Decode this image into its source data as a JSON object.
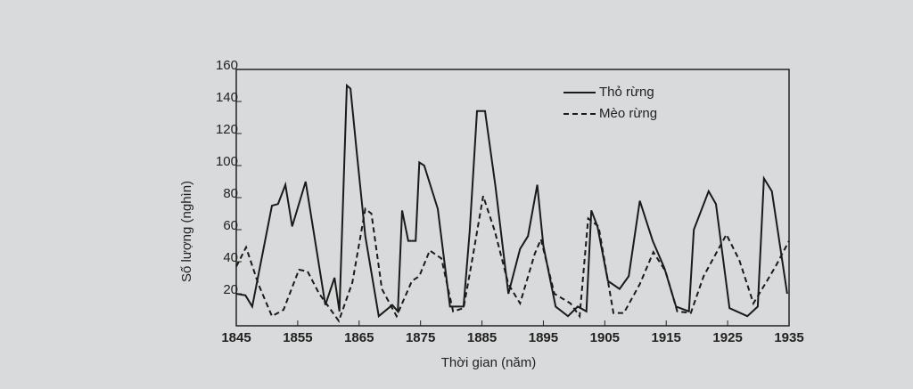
{
  "chart_data": {
    "type": "line",
    "xlabel": "Thời gian (năm)",
    "ylabel": "Số lượng (nghìn)",
    "xlim": [
      1845,
      1935
    ],
    "xticks": [
      1845,
      1855,
      1865,
      1875,
      1885,
      1895,
      1905,
      1915,
      1925,
      1935
    ],
    "ylim": [
      0,
      160
    ],
    "yticks": [
      20,
      40,
      60,
      80,
      100,
      120,
      140,
      160
    ],
    "legend": "upper right",
    "series": [
      {
        "name": "Thỏ rừng",
        "color": "#1a1a1a",
        "dashed": false,
        "x": [
          1845,
          1846.5,
          1847.6,
          1850.8,
          1851.8,
          1853,
          1854.1,
          1856.3,
          1859.5,
          1861,
          1861.8,
          1863,
          1863.6,
          1864.6,
          1866,
          1868.2,
          1870.4,
          1871.3,
          1872,
          1873,
          1874.2,
          1874.8,
          1875.6,
          1877.8,
          1879.8,
          1882,
          1883,
          1884.2,
          1885.5,
          1887.2,
          1889.3,
          1891.2,
          1892.5,
          1894,
          1895,
          1897,
          1899,
          1900.6,
          1902,
          1902.8,
          1903.8,
          1905.5,
          1907.4,
          1908.9,
          1910.7,
          1912.8,
          1914.7,
          1916.6,
          1918.7,
          1919.5,
          1921.9,
          1923.1,
          1925.3,
          1928.2,
          1929.9,
          1930.9,
          1932.2,
          1934.7
        ],
        "values": [
          20,
          19,
          12,
          75,
          76,
          88,
          62,
          90,
          13,
          30,
          9,
          150,
          148,
          109,
          56,
          6,
          13,
          9,
          72,
          53,
          53,
          102,
          100,
          73,
          12,
          12,
          59,
          134,
          134,
          87,
          20,
          48,
          56,
          88,
          50,
          12,
          6,
          12,
          9,
          72,
          62,
          28,
          23,
          31,
          78,
          53,
          36,
          12,
          9,
          60,
          84,
          76,
          11,
          6,
          12,
          92,
          84,
          20
        ]
      },
      {
        "name": "Mèo rừng",
        "color": "#1a1a1a",
        "dashed": true,
        "x": [
          1845,
          1846.6,
          1848.6,
          1850.8,
          1852.7,
          1855.2,
          1856.6,
          1858.5,
          1861.7,
          1863.9,
          1866,
          1867,
          1868.7,
          1871.1,
          1873.6,
          1874.8,
          1876.5,
          1878.4,
          1880.3,
          1882,
          1883.5,
          1885.2,
          1887.1,
          1889.3,
          1891.2,
          1893.6,
          1894.6,
          1896.8,
          1899.4,
          1900.9,
          1902.3,
          1904,
          1906.4,
          1908.1,
          1910.7,
          1912.9,
          1914.9,
          1916.8,
          1919,
          1921.1,
          1924.8,
          1926.9,
          1929.2,
          1931.4,
          1932.8,
          1935
        ],
        "values": [
          37,
          49,
          26,
          6,
          10,
          35,
          34,
          20,
          3,
          27,
          73,
          70,
          23,
          6,
          28,
          31,
          47,
          42,
          9,
          11,
          43,
          81,
          59,
          26,
          14,
          45,
          54,
          20,
          14,
          6,
          67,
          62,
          8,
          8,
          26,
          46,
          34,
          9,
          8,
          31,
          57,
          41,
          14,
          28,
          37,
          53
        ]
      }
    ]
  }
}
